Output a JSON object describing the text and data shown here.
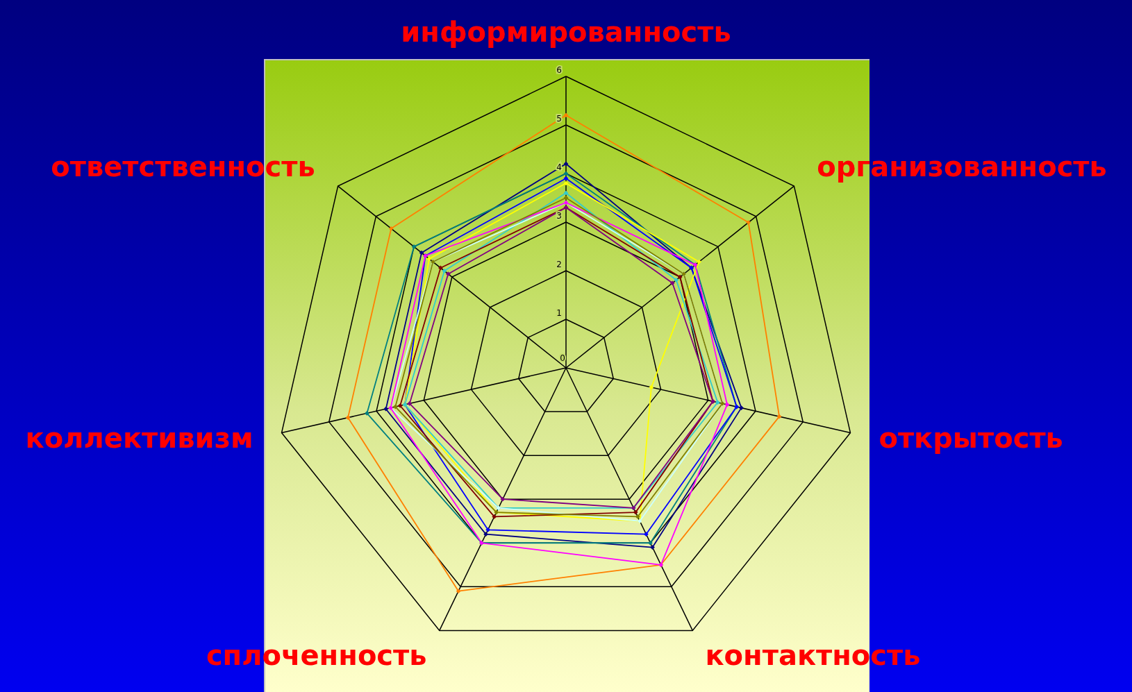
{
  "chart_data": {
    "type": "radar",
    "categories": [
      "информированность",
      "организованность",
      "открытость",
      "контактность",
      "сплоченность",
      "коллективизм",
      "ответственность"
    ],
    "ylim": [
      0,
      6
    ],
    "yticks": [
      0,
      1,
      2,
      3,
      4,
      5,
      6
    ],
    "grid": true,
    "marker": "diamond",
    "line_style": "solid",
    "series": [
      {
        "color": "#ff8000",
        "values": [
          5.2,
          4.8,
          4.5,
          4.5,
          5.1,
          4.6,
          4.6
        ]
      },
      {
        "color": "#000080",
        "values": [
          4.2,
          3.3,
          3.7,
          4.1,
          3.8,
          3.8,
          3.8
        ]
      },
      {
        "color": "#008080",
        "values": [
          4.0,
          3.4,
          3.6,
          4.0,
          4.0,
          4.2,
          4.0
        ]
      },
      {
        "color": "#0000ff",
        "values": [
          3.9,
          3.3,
          3.6,
          3.8,
          3.7,
          3.4,
          3.7
        ]
      },
      {
        "color": "#ffff00",
        "values": [
          3.8,
          3.5,
          1.8,
          3.5,
          3.3,
          3.4,
          3.6
        ]
      },
      {
        "color": "#33cccc",
        "values": [
          3.6,
          2.9,
          3.2,
          3.2,
          3.2,
          3.4,
          3.2
        ]
      },
      {
        "color": "#ccffff",
        "values": [
          3.4,
          3.1,
          3.3,
          3.5,
          3.2,
          3.7,
          3.5
        ]
      },
      {
        "color": "#ff00ff",
        "values": [
          3.4,
          3.4,
          3.4,
          4.5,
          4.0,
          3.7,
          3.7
        ]
      },
      {
        "color": "#800000",
        "values": [
          3.3,
          3.0,
          3.1,
          3.3,
          3.4,
          3.5,
          3.3
        ]
      },
      {
        "color": "#800080",
        "values": [
          3.3,
          2.8,
          3.1,
          3.2,
          3.0,
          3.3,
          3.1
        ]
      },
      {
        "color": "#808000",
        "values": [
          3.5,
          3.1,
          3.3,
          3.4,
          3.3,
          3.6,
          3.5
        ]
      }
    ]
  }
}
